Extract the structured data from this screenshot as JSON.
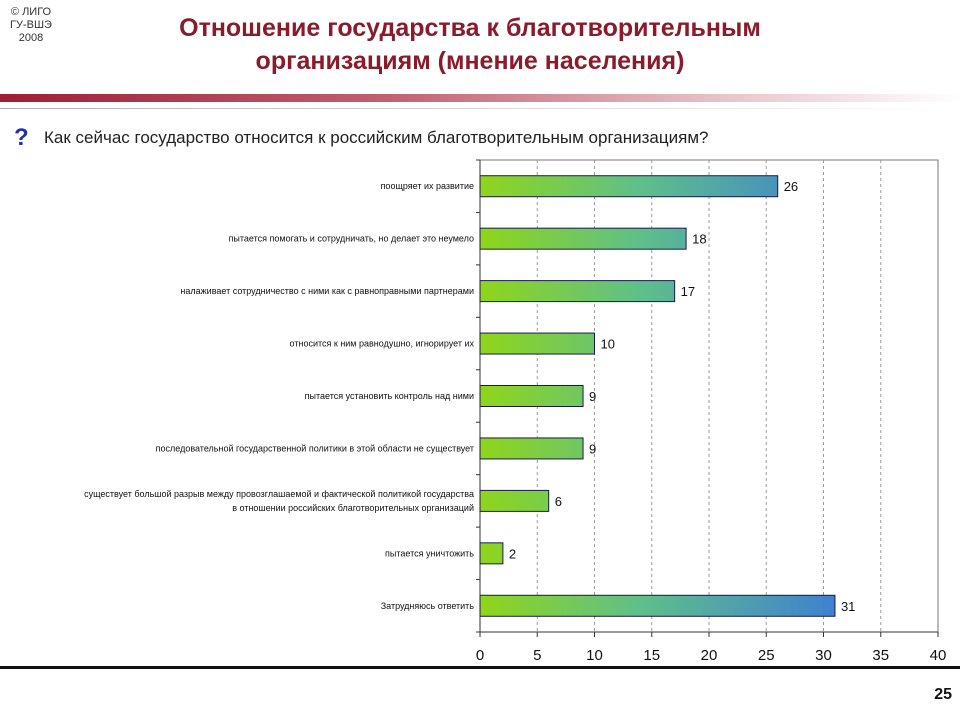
{
  "copyright": [
    "© ЛИГО",
    "ГУ-ВШЭ",
    "2008"
  ],
  "title": {
    "line1": "Отношение государства к благотворительным",
    "line2": "организациям (мнение населения)"
  },
  "question": {
    "mark": "?",
    "text": "Как сейчас государство относится к российским благотворительным организациям?"
  },
  "page_number": "25",
  "colors": {
    "title": "#8B1A2B",
    "bar_start": "#8fd61a",
    "bar_end": "#2f60f5",
    "bar_border": "#1a1a4a"
  },
  "chart_data": {
    "type": "bar",
    "orientation": "horizontal",
    "categories": [
      [
        "поощряет их развитие"
      ],
      [
        "пытается помогать и сотрудничать, но делает это неумело"
      ],
      [
        "налаживает сотрудничество с ними как с равноправными партнерами"
      ],
      [
        "относится к ним равнодушно, игнорирует их"
      ],
      [
        "пытается установить контроль над ними"
      ],
      [
        "последовательной государственной политики в этой области не существует"
      ],
      [
        "существует большой разрыв между провозглашаемой и фактической политикой государства",
        "в отношении российских благотворительных организаций"
      ],
      [
        "пытается уничтожить"
      ],
      [
        "Затрудняюсь ответить"
      ]
    ],
    "values": [
      26,
      18,
      17,
      10,
      9,
      9,
      6,
      2,
      31
    ],
    "xlim": [
      0,
      40
    ],
    "xticks": [
      0,
      5,
      10,
      15,
      20,
      25,
      30,
      35,
      40
    ],
    "grid": "vertical dashed",
    "xlabel": "",
    "ylabel": ""
  }
}
